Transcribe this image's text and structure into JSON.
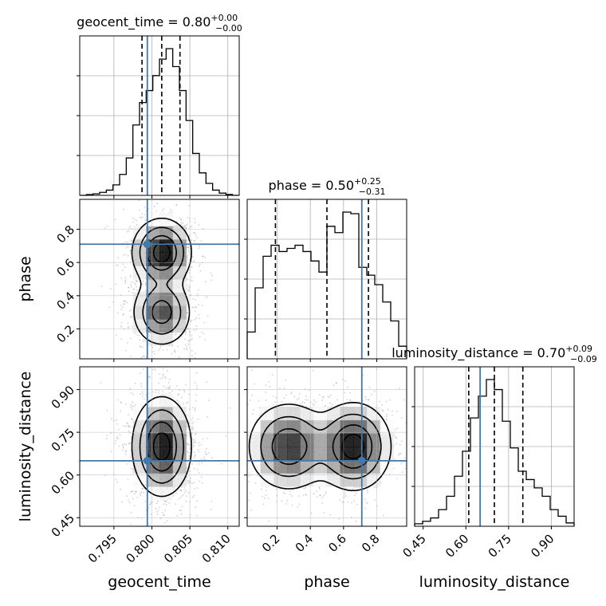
{
  "chart_data": {
    "type": "corner",
    "truth_color": "#4477aa",
    "parameters": [
      {
        "name": "geocent_time",
        "label": "geocent_time",
        "range": [
          0.7905,
          0.8115
        ],
        "ticks": [
          0.795,
          0.8,
          0.805,
          0.81
        ],
        "tick_labels": [
          "0.795",
          "0.800",
          "0.805",
          "0.810"
        ],
        "truth": 0.7994,
        "quantiles": [
          0.7987,
          0.8013,
          0.8037
        ],
        "title_name": "geocent_time",
        "title_value": "0.80",
        "title_plus": "+0.00",
        "title_minus": "−0.00",
        "hist": [
          0.0,
          0.005,
          0.01,
          0.02,
          0.035,
          0.07,
          0.14,
          0.25,
          0.47,
          0.62,
          0.7,
          0.8,
          0.91,
          0.98,
          0.86,
          0.7,
          0.5,
          0.28,
          0.15,
          0.08,
          0.035,
          0.015,
          0.006,
          0.0
        ]
      },
      {
        "name": "phase",
        "label": "phase",
        "range": [
          0.02,
          0.98
        ],
        "ticks": [
          0.2,
          0.4,
          0.6,
          0.8
        ],
        "tick_labels": [
          "0.2",
          "0.4",
          "0.6",
          "0.8"
        ],
        "truth": 0.71,
        "quantiles": [
          0.19,
          0.5,
          0.75
        ],
        "title_name": "phase",
        "title_value": "0.50",
        "title_plus": "+0.25",
        "title_minus": "−0.31",
        "hist": [
          0.17,
          0.45,
          0.65,
          0.72,
          0.68,
          0.7,
          0.72,
          0.68,
          0.62,
          0.55,
          0.84,
          0.8,
          0.93,
          0.92,
          0.58,
          0.53,
          0.47,
          0.36,
          0.24,
          0.08
        ]
      },
      {
        "name": "luminosity_distance",
        "label": "luminosity_distance",
        "range": [
          0.42,
          0.98
        ],
        "ticks": [
          0.45,
          0.6,
          0.75,
          0.9
        ],
        "tick_labels": [
          "0.45",
          "0.60",
          "0.75",
          "0.90"
        ],
        "truth": 0.65,
        "quantiles": [
          0.61,
          0.7,
          0.8
        ],
        "title_name": "luminosity_distance",
        "title_value": "0.70",
        "title_plus": "+0.09",
        "title_minus": "−0.09",
        "hist": [
          0.015,
          0.03,
          0.05,
          0.1,
          0.18,
          0.3,
          0.45,
          0.65,
          0.78,
          0.88,
          0.82,
          0.63,
          0.47,
          0.33,
          0.28,
          0.23,
          0.18,
          0.1,
          0.06,
          0.02
        ]
      }
    ],
    "joint": [
      {
        "x": "geocent_time",
        "y": "phase",
        "modes": [
          {
            "cx": 0.8013,
            "cy": 0.66,
            "sx": 0.0019,
            "sy": 0.1,
            "w": 1.0
          },
          {
            "cx": 0.8013,
            "cy": 0.3,
            "sx": 0.0019,
            "sy": 0.1,
            "w": 0.75
          }
        ]
      },
      {
        "x": "geocent_time",
        "y": "luminosity_distance",
        "modes": [
          {
            "cx": 0.8013,
            "cy": 0.7,
            "sx": 0.0019,
            "sy": 0.085,
            "w": 1.0
          }
        ]
      },
      {
        "x": "phase",
        "y": "luminosity_distance",
        "modes": [
          {
            "cx": 0.27,
            "cy": 0.7,
            "sx": 0.12,
            "sy": 0.075,
            "w": 0.85
          },
          {
            "cx": 0.66,
            "cy": 0.7,
            "sx": 0.11,
            "sy": 0.075,
            "w": 1.0
          }
        ]
      }
    ]
  }
}
